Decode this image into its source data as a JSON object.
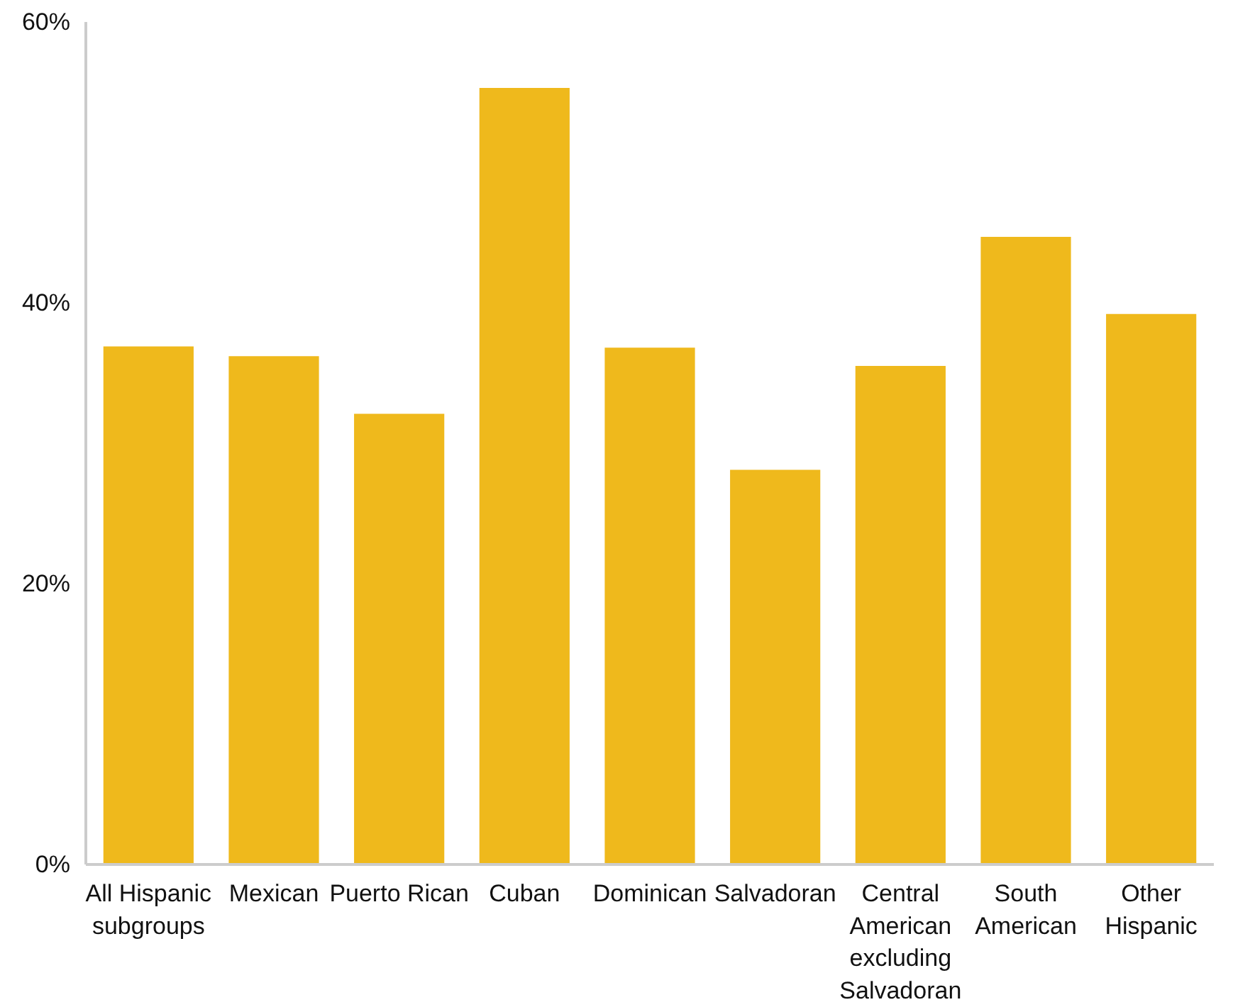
{
  "chart_data": {
    "type": "bar",
    "categories": [
      "All Hispanic subgroups",
      "Mexican",
      "Puerto Rican",
      "Cuban",
      "Dominican",
      "Salvadoran",
      "Central American excluding Salvadoran",
      "South American",
      "Other Hispanic"
    ],
    "values": [
      36.9,
      36.2,
      32.1,
      55.3,
      36.8,
      28.1,
      35.5,
      44.7,
      39.2
    ],
    "color": "#efb91c",
    "ylim": [
      0,
      60
    ],
    "yticks": [
      {
        "value": 0,
        "label": "0%"
      },
      {
        "value": 20,
        "label": "20%"
      },
      {
        "value": 40,
        "label": "40%"
      },
      {
        "value": 60,
        "label": "60%"
      }
    ],
    "grid": false
  }
}
